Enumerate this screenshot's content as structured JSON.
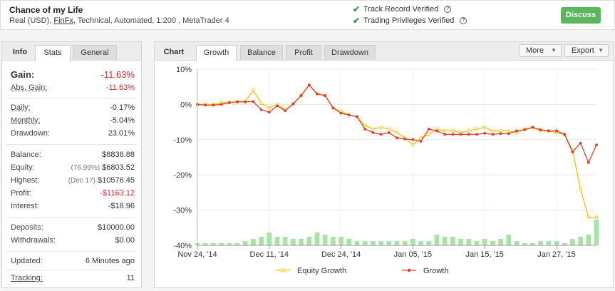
{
  "header": {
    "title": "Chance of my Life",
    "sub_prefix": "Real (USD), ",
    "broker": "FinFx",
    "sub_suffix": ", Technical, Automated, 1:200 , MetaTrader 4",
    "verifications": [
      "Track Record Verified",
      "Trading Privileges Verified"
    ],
    "discuss_label": "Discuss"
  },
  "left": {
    "tabs": [
      "Info",
      "Stats",
      "General"
    ],
    "gain_label": "Gain:",
    "gain_value": "-11.63%",
    "abs_gain_label": "Abs. Gain:",
    "abs_gain_value": "-11.63%",
    "daily_label": "Daily:",
    "daily_value": "-0.17%",
    "monthly_label": "Monthly:",
    "monthly_value": "-5.04%",
    "drawdown_label": "Drawdown:",
    "drawdown_value": "23.01%",
    "balance_label": "Balance:",
    "balance_value": "$8836.88",
    "equity_label": "Equity:",
    "equity_note": "(76.99%)",
    "equity_value": "$6803.52",
    "highest_label": "Highest:",
    "highest_note": "(Dec 17)",
    "highest_value": "$10576.45",
    "profit_label": "Profit:",
    "profit_value": "-$1163.12",
    "interest_label": "Interest:",
    "interest_value": "-$18.96",
    "deposits_label": "Deposits:",
    "deposits_value": "$10000.00",
    "withdrawals_label": "Withdrawals:",
    "withdrawals_value": "$0.00",
    "updated_label": "Updated:",
    "updated_value": "6 Minutes ago",
    "tracking_label": "Tracking:",
    "tracking_value": "11"
  },
  "chart_panel": {
    "label": "Chart",
    "tabs": [
      "Growth",
      "Balance",
      "Profit",
      "Drawdown"
    ],
    "more_label": "More",
    "export_label": "Export"
  },
  "colors": {
    "equity_growth": "#f5c400",
    "growth": "#e03c31",
    "bars": "#a7e3a7",
    "accent_green": "#5cb65c"
  },
  "chart_data": {
    "type": "line",
    "ylim": [
      -40,
      10
    ],
    "yticks": [
      "10%",
      "0%",
      "-10%",
      "-20%",
      "-30%",
      "-40%"
    ],
    "xticks": [
      "Nov 24, '14",
      "Dec 11, '14",
      "Dec 24, '14",
      "Jan 05, '15",
      "Jan 15, '15",
      "Jan 27, '15"
    ],
    "xtick_index": [
      0,
      9,
      18,
      27,
      36,
      45
    ],
    "series": [
      {
        "name": "Equity Growth",
        "values": [
          0,
          0,
          0,
          0.5,
          0.5,
          0.8,
          0.9,
          4,
          0.3,
          -1,
          0,
          -1.5,
          0,
          2.5,
          5.5,
          3,
          2.5,
          -1,
          -2,
          -3,
          -3.5,
          -6,
          -7,
          -6.5,
          -7,
          -8,
          -9.5,
          -11.5,
          -9.5,
          -8.5,
          -7,
          -7.5,
          -7.5,
          -8,
          -7.5,
          -7,
          -6.5,
          -7.5,
          -7.5,
          -7.5,
          -8,
          -7,
          -6.5,
          -7.5,
          -7.5,
          -8,
          -8.5,
          -13,
          -24,
          -32,
          -32
        ]
      },
      {
        "name": "Growth",
        "values": [
          0,
          -0.2,
          -0.2,
          0,
          0.5,
          0.7,
          0.7,
          0.8,
          -1.5,
          -2.2,
          -0.4,
          -1.8,
          0.2,
          2.5,
          5.5,
          3,
          2.5,
          -1,
          -2.5,
          -3,
          -3.5,
          -7,
          -8,
          -8.5,
          -8,
          -9.5,
          -9.8,
          -10,
          -10.5,
          -7,
          -7.5,
          -8.5,
          -8.5,
          -8.5,
          -8.5,
          -8.5,
          -8.2,
          -8.5,
          -8.3,
          -8.3,
          -7.5,
          -7.2,
          -6.5,
          -7.2,
          -7.5,
          -7.5,
          -8.5,
          -13.5,
          -11,
          -16.5,
          -11.5
        ]
      }
    ],
    "bars": [
      1,
      1,
      1,
      1,
      1,
      1,
      2,
      3,
      4,
      6,
      4,
      4,
      3,
      3,
      4,
      6,
      5,
      4,
      4,
      3,
      2,
      2,
      2,
      2,
      2,
      2,
      2,
      3,
      2,
      2,
      5,
      4,
      4,
      3,
      3,
      2,
      3,
      2,
      3,
      5,
      2,
      1,
      1,
      2,
      2,
      2,
      1,
      3,
      4,
      5,
      12
    ],
    "bars_max": 15,
    "legend": "bottom-center"
  }
}
